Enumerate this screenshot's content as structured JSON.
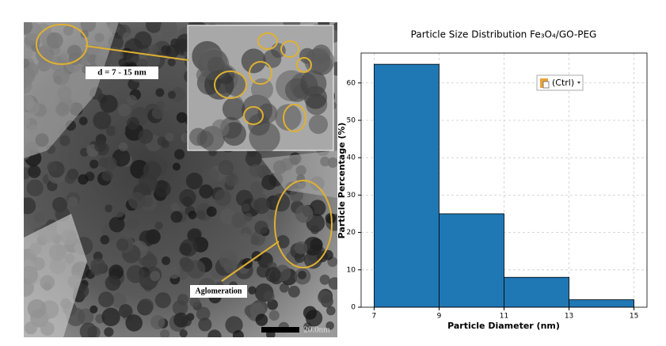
{
  "micrograph": {
    "size_label": "d = 7 - 15 nm",
    "agglomeration_label": "Aglomeration",
    "scale_label": "20.0nm"
  },
  "chart_data": {
    "type": "histogram",
    "title": "Particle Size Distribution Fe₃O₄/GO-PEG",
    "x_label": "Particle Diameter (nm)",
    "y_label": "Particle Percentage (%)",
    "bins": [
      7,
      9,
      11,
      13,
      15
    ],
    "values": [
      65,
      25,
      8,
      2
    ],
    "color": "#1f77b4",
    "xlim": [
      6.6,
      15.4
    ],
    "ylim": [
      0,
      68
    ],
    "xticks": [
      7,
      9,
      11,
      13,
      15
    ],
    "yticks": [
      0,
      10,
      20,
      30,
      40,
      50,
      60
    ],
    "grid": true
  },
  "overlay": {
    "paste_button": "(Ctrl)"
  }
}
